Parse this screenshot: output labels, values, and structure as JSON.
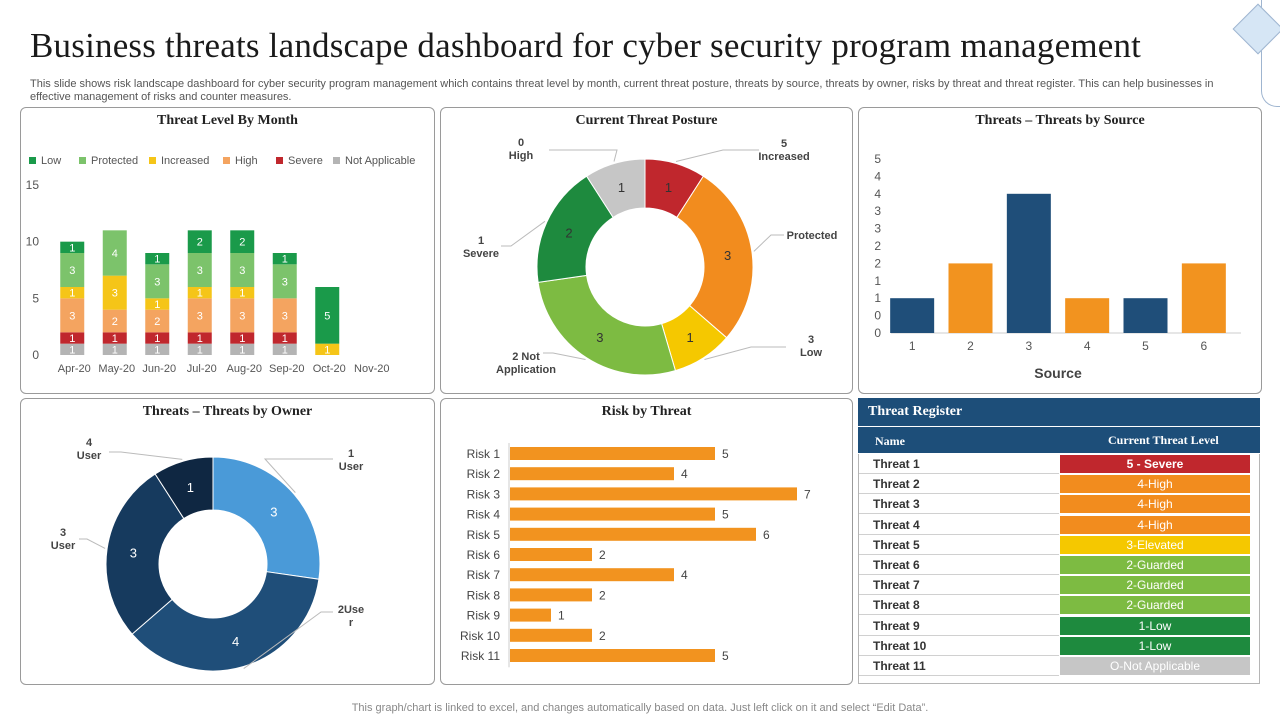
{
  "page": {
    "title": "Business threats landscape  dashboard for cyber security program management",
    "description": "This slide shows risk landscape dashboard for cyber security program management which contains threat level by month, current threat posture, threats by source, threats by owner, risks by threat and threat register. This can help businesses in effective management of risks and counter measures.",
    "footer": "This graph/chart is linked to excel,  and changes automatically based on data. Just left click on it and select “Edit Data”."
  },
  "chart_data": [
    {
      "type": "bar",
      "stacked": true,
      "title": "Threat Level By Month",
      "categories": [
        "Apr-20",
        "May-20",
        "Jun-20",
        "Jul-20",
        "Aug-20",
        "Sep-20",
        "Oct-20",
        "Nov-20"
      ],
      "ylim": [
        0,
        15
      ],
      "yticks": [
        "0",
        "5",
        "10",
        "15"
      ],
      "legend_position": "top",
      "series": [
        {
          "name": "Not Applicable",
          "color": "#b4b4b4",
          "values": [
            1,
            1,
            1,
            1,
            1,
            1,
            0,
            0
          ]
        },
        {
          "name": "Severe",
          "color": "#c0272d",
          "values": [
            1,
            1,
            1,
            1,
            1,
            1,
            0,
            0
          ]
        },
        {
          "name": "High",
          "color": "#f4a460",
          "values": [
            3,
            2,
            2,
            3,
            3,
            3,
            0,
            0
          ]
        },
        {
          "name": "Increased",
          "color": "#f5c518",
          "values": [
            1,
            3,
            1,
            1,
            1,
            0,
            1,
            0
          ]
        },
        {
          "name": "Protected",
          "color": "#7cc36b",
          "values": [
            3,
            4,
            3,
            3,
            3,
            3,
            0,
            0
          ]
        },
        {
          "name": "Low",
          "color": "#1a9a4a",
          "values": [
            1,
            0,
            1,
            2,
            2,
            1,
            5,
            0
          ]
        }
      ],
      "legend_order": [
        "Low",
        "Protected",
        "Increased",
        "High",
        "Severe",
        "Not Applicable"
      ]
    },
    {
      "type": "pie",
      "donut": true,
      "title": "Current Threat Posture",
      "slices": [
        {
          "label": "Increased",
          "value": 1,
          "color": "#c0272d",
          "callout": [
            "5",
            "Increased"
          ]
        },
        {
          "label": "Protected",
          "value": 3,
          "color": "#f28c1e",
          "callout": [
            "Protected"
          ]
        },
        {
          "label": "Low",
          "value": 1,
          "color": "#f5c800",
          "callout": [
            "3",
            "Low"
          ]
        },
        {
          "label": "Not Application",
          "value": 3,
          "color": "#7dbb42",
          "callout": [
            "2 Not",
            "Application"
          ]
        },
        {
          "label": "Severe",
          "value": 2,
          "color": "#1e8a3e",
          "callout": [
            "1",
            "Severe"
          ]
        },
        {
          "label": "High",
          "value": 1,
          "color": "#c6c6c6",
          "callout": [
            "0",
            "High"
          ]
        }
      ]
    },
    {
      "type": "bar",
      "title": "Threats – Threats by Source",
      "categories": [
        "1",
        "2",
        "3",
        "4",
        "5",
        "6"
      ],
      "values": [
        1,
        2,
        4,
        1,
        1,
        2
      ],
      "colors": [
        "#1f4e79",
        "#f2931f",
        "#1f4e79",
        "#f2931f",
        "#1f4e79",
        "#f2931f"
      ],
      "xlabel": "Source",
      "ylim": [
        0,
        5
      ],
      "yticks": [
        "0",
        "0",
        "1",
        "1",
        "2",
        "2",
        "3",
        "3",
        "4",
        "4",
        "5"
      ]
    },
    {
      "type": "pie",
      "donut": true,
      "title": "Threats – Threats by Owner",
      "slices": [
        {
          "label": "1 User",
          "value": 3,
          "color": "#4a9ad8",
          "callout": [
            "1",
            "User"
          ]
        },
        {
          "label": "2User",
          "value": 4,
          "color": "#1f4e79",
          "callout": [
            "2Use",
            "r"
          ]
        },
        {
          "label": "3 User",
          "value": 3,
          "color": "#163a5e",
          "callout": [
            "3",
            "User"
          ]
        },
        {
          "label": "4 User",
          "value": 1,
          "color": "#0f2742",
          "callout": [
            "4",
            "User"
          ]
        }
      ]
    },
    {
      "type": "bar",
      "horizontal": true,
      "title": "Risk by Threat",
      "categories": [
        "Risk 1",
        "Risk 2",
        "Risk 3",
        "Risk 4",
        "Risk 5",
        "Risk 6",
        "Risk 7",
        "Risk 8",
        "Risk 9",
        "Risk 10",
        "Risk 11"
      ],
      "values": [
        5,
        4,
        7,
        5,
        6,
        2,
        4,
        2,
        1,
        2,
        5
      ],
      "color": "#f2931f",
      "xlim": [
        0,
        7
      ]
    },
    {
      "type": "table",
      "title": "Threat Register",
      "columns": [
        "Name",
        "Current Threat Level"
      ],
      "rows": [
        {
          "name": "Threat 1",
          "level": "5 - Severe",
          "color": "#c0272d"
        },
        {
          "name": "Threat 2",
          "level": "4-High",
          "color": "#f28c1e"
        },
        {
          "name": "Threat 3",
          "level": "4-High",
          "color": "#f28c1e"
        },
        {
          "name": "Threat 4",
          "level": "4-High",
          "color": "#f28c1e"
        },
        {
          "name": "Threat 5",
          "level": "3-Elevated",
          "color": "#f5c800"
        },
        {
          "name": "Threat 6",
          "level": "2-Guarded",
          "color": "#7dbb42"
        },
        {
          "name": "Threat 7",
          "level": "2-Guarded",
          "color": "#7dbb42"
        },
        {
          "name": "Threat 8",
          "level": "2-Guarded",
          "color": "#7dbb42"
        },
        {
          "name": "Threat 9",
          "level": "1-Low",
          "color": "#1e8a3e"
        },
        {
          "name": "Threat 10",
          "level": "1-Low",
          "color": "#1e8a3e"
        },
        {
          "name": "Threat 11",
          "level": "O-Not Applicable",
          "color": "#c6c6c6"
        }
      ]
    }
  ]
}
